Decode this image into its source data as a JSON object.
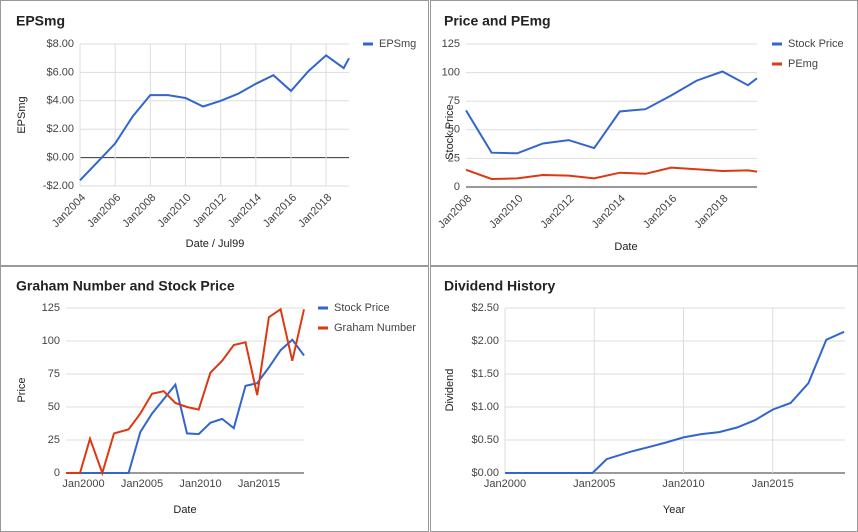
{
  "chart_data": [
    {
      "type": "line",
      "title": "EPSmg",
      "x_label": "Date / Jul99",
      "y_label": "EPSmg",
      "legend": "right",
      "grid": true,
      "xgrid": true,
      "xlim": [
        2004,
        2019.3
      ],
      "ylim": [
        -2,
        8
      ],
      "xticks": [
        {
          "value": 2004,
          "label": "Jan2004"
        },
        {
          "value": 2006,
          "label": "Jan2006"
        },
        {
          "value": 2008,
          "label": "Jan2008"
        },
        {
          "value": 2010,
          "label": "Jan2010"
        },
        {
          "value": 2012,
          "label": "Jan2012"
        },
        {
          "value": 2014,
          "label": "Jan2014"
        },
        {
          "value": 2016,
          "label": "Jan2016"
        },
        {
          "value": 2018,
          "label": "Jan2018"
        }
      ],
      "yticks": [
        {
          "value": 8,
          "label": "$8.00"
        },
        {
          "value": 6,
          "label": "$6.00"
        },
        {
          "value": 4,
          "label": "$4.00"
        },
        {
          "value": 2,
          "label": "$2.00"
        },
        {
          "value": 0,
          "label": "$0.00"
        },
        {
          "value": -2,
          "label": "-$2.00"
        }
      ],
      "series": [
        {
          "name": "EPSmg",
          "color": "#3366cc",
          "x": [
            2004,
            2005,
            2006,
            2007,
            2008,
            2009,
            2010,
            2011,
            2012,
            2013,
            2014,
            2015,
            2016,
            2017,
            2018,
            2019,
            2019.3
          ],
          "values": [
            -1.6,
            -0.3,
            1.0,
            2.9,
            4.4,
            4.4,
            4.2,
            3.6,
            4.0,
            4.5,
            5.2,
            5.8,
            4.7,
            6.1,
            7.2,
            6.3,
            7.0
          ]
        }
      ]
    },
    {
      "type": "line",
      "title": "Price and PEmg",
      "x_label": "Date",
      "y_label": "Stock Price",
      "legend": "right",
      "grid": true,
      "xgrid": false,
      "xlim": [
        2008,
        2019.35
      ],
      "ylim": [
        0,
        125
      ],
      "xticks": [
        {
          "value": 2008,
          "label": "Jan2008"
        },
        {
          "value": 2010,
          "label": "Jan2010"
        },
        {
          "value": 2012,
          "label": "Jan2012"
        },
        {
          "value": 2014,
          "label": "Jan2014"
        },
        {
          "value": 2016,
          "label": "Jan2016"
        },
        {
          "value": 2018,
          "label": "Jan2018"
        }
      ],
      "yticks": [
        125,
        100,
        75,
        50,
        25,
        0
      ],
      "series": [
        {
          "name": "Stock Price",
          "color": "#3366cc",
          "x": [
            2008,
            2009,
            2010,
            2011,
            2012,
            2013,
            2014,
            2015,
            2016,
            2017,
            2018,
            2019,
            2019.35
          ],
          "values": [
            67,
            30,
            29.5,
            38,
            41,
            34,
            66,
            68,
            80,
            93,
            101,
            89,
            95
          ]
        },
        {
          "name": "PEmg",
          "color": "#dc3912",
          "x": [
            2008,
            2009,
            2010,
            2011,
            2012,
            2013,
            2014,
            2015,
            2016,
            2017,
            2018,
            2019,
            2019.35
          ],
          "values": [
            15,
            7,
            7.5,
            10.5,
            10,
            7.5,
            12.5,
            11.5,
            17,
            15.5,
            14,
            14.5,
            13.5
          ]
        }
      ]
    },
    {
      "type": "line",
      "title": "Graham Number and Stock Price",
      "x_label": "Date",
      "y_label": "Price",
      "legend": "right",
      "grid": true,
      "xgrid": false,
      "xlim": [
        1998.5,
        2018.85
      ],
      "ylim": [
        0,
        125
      ],
      "xticks": [
        {
          "value": 2000,
          "label": "Jan2000"
        },
        {
          "value": 2005,
          "label": "Jan2005"
        },
        {
          "value": 2010,
          "label": "Jan2010"
        },
        {
          "value": 2015,
          "label": "Jan2015"
        }
      ],
      "yticks": [
        125,
        100,
        75,
        50,
        25,
        0
      ],
      "series": [
        {
          "name": "Stock Price",
          "color": "#3366cc",
          "x": [
            1998.5,
            2003.85,
            2004.85,
            2005.85,
            2006.85,
            2007.85,
            2008.85,
            2009.85,
            2010.85,
            2011.85,
            2012.85,
            2013.85,
            2014.85,
            2015.85,
            2016.85,
            2017.85,
            2018.85
          ],
          "values": [
            0,
            0,
            31,
            45,
            56,
            67,
            30,
            29.5,
            38,
            41,
            34,
            66,
            68,
            80,
            93,
            101,
            89
          ]
        },
        {
          "name": "Graham Number",
          "color": "#dc3912",
          "x": [
            1998.5,
            1999.7,
            2000.55,
            2001.6,
            2002.6,
            2003.85,
            2004.85,
            2005.85,
            2006.85,
            2007.85,
            2008.85,
            2009.85,
            2010.85,
            2011.85,
            2012.85,
            2013.85,
            2014.85,
            2015.85,
            2016.85,
            2017.85,
            2018.85
          ],
          "values": [
            0,
            0,
            26,
            0,
            30,
            33,
            45,
            60,
            62,
            53,
            50,
            48,
            76,
            85,
            97,
            99,
            59,
            118,
            124,
            85,
            124
          ]
        }
      ]
    },
    {
      "type": "line",
      "title": "Dividend History",
      "x_label": "Year",
      "y_label": "Dividend",
      "grid": true,
      "xgrid": true,
      "xlim": [
        2000,
        2019.05
      ],
      "ylim": [
        0,
        2.5
      ],
      "xticks": [
        {
          "value": 2000,
          "label": "Jan2000"
        },
        {
          "value": 2005,
          "label": "Jan2005"
        },
        {
          "value": 2010,
          "label": "Jan2010"
        },
        {
          "value": 2015,
          "label": "Jan2015"
        }
      ],
      "yticks": [
        {
          "value": 2.5,
          "label": "$2.50"
        },
        {
          "value": 2,
          "label": "$2.00"
        },
        {
          "value": 1.5,
          "label": "$1.50"
        },
        {
          "value": 1,
          "label": "$1.00"
        },
        {
          "value": 0.5,
          "label": "$0.50"
        },
        {
          "value": 0,
          "label": "$0.00"
        }
      ],
      "series": [
        {
          "name": "Dividend",
          "color": "#3366cc",
          "x": [
            2000,
            2004.9,
            2005.7,
            2007,
            2008,
            2009,
            2010,
            2011,
            2012,
            2013,
            2014,
            2015,
            2016,
            2017,
            2018,
            2019
          ],
          "values": [
            0,
            0,
            0.21,
            0.32,
            0.39,
            0.46,
            0.54,
            0.59,
            0.62,
            0.69,
            0.8,
            0.96,
            1.06,
            1.36,
            2.02,
            2.14
          ]
        }
      ]
    }
  ]
}
